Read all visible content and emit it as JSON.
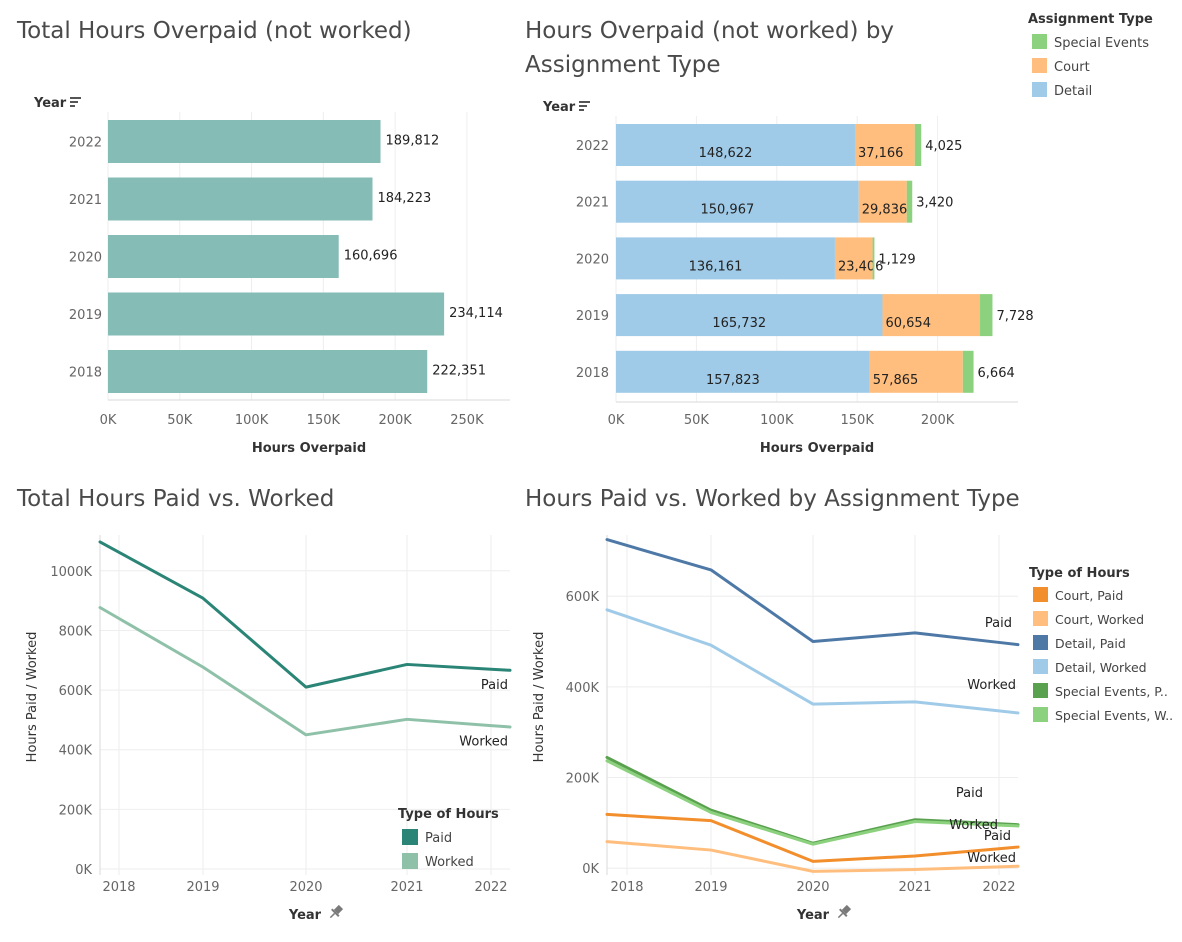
{
  "colors": {
    "teal_bar": "#86bcb6",
    "paid_dark": "#2a8576",
    "worked_light": "#8fc1a9",
    "detail": "#a0cbe8",
    "court": "#ffbe7d",
    "special": "#8cd17d",
    "court_paid": "#f28e2b",
    "court_worked": "#ffbe7d",
    "detail_paid": "#4e79a7",
    "detail_worked": "#a0cbe8",
    "special_paid": "#59a14f",
    "special_worked": "#8cd17d"
  },
  "chart_data": [
    {
      "type": "bar",
      "orientation": "horizontal",
      "title": "Total Hours Overpaid (not worked)",
      "row_header": "Year",
      "row_header_icon": "sort-icon",
      "categories": [
        "2022",
        "2021",
        "2020",
        "2019",
        "2018"
      ],
      "values": [
        189812,
        184223,
        160696,
        234114,
        222351
      ],
      "value_labels": [
        "189,812",
        "184,223",
        "160,696",
        "234,114",
        "222,351"
      ],
      "xlabel": "Hours Overpaid",
      "xlim": [
        0,
        280000
      ],
      "x_ticks": [
        {
          "value": 0,
          "label": "0K"
        },
        {
          "value": 50000,
          "label": "50K"
        },
        {
          "value": 100000,
          "label": "100K"
        },
        {
          "value": 150000,
          "label": "150K"
        },
        {
          "value": 200000,
          "label": "200K"
        },
        {
          "value": 250000,
          "label": "250K"
        }
      ]
    },
    {
      "type": "bar",
      "orientation": "horizontal",
      "stacked": true,
      "title_lines": [
        "Hours Overpaid (not worked) by",
        "Assignment Type"
      ],
      "row_header": "Year",
      "row_header_icon": "sort-icon",
      "categories": [
        "2022",
        "2021",
        "2020",
        "2019",
        "2018"
      ],
      "series": [
        {
          "name": "Detail",
          "values": [
            148622,
            150967,
            136161,
            165732,
            157823
          ],
          "labels": [
            "148,622",
            "150,967",
            "136,161",
            "165,732",
            "157,823"
          ]
        },
        {
          "name": "Court",
          "values": [
            37166,
            29836,
            23406,
            60654,
            57865
          ],
          "labels": [
            "37,166",
            "29,836",
            "23,406",
            "60,654",
            "57,865"
          ]
        },
        {
          "name": "Special Events",
          "values": [
            4025,
            3420,
            1129,
            7728,
            6664
          ],
          "labels": [
            "4,025",
            "3,420",
            "1,129",
            "7,728",
            "6,664"
          ]
        }
      ],
      "legend_title": "Assignment Type",
      "legend": [
        "Special Events",
        "Court",
        "Detail"
      ],
      "legend_placement": "top-right",
      "xlabel": "Hours Overpaid",
      "xlim": [
        0,
        250000
      ],
      "x_ticks": [
        {
          "value": 0,
          "label": "0K"
        },
        {
          "value": 50000,
          "label": "50K"
        },
        {
          "value": 100000,
          "label": "100K"
        },
        {
          "value": 150000,
          "label": "150K"
        },
        {
          "value": 200000,
          "label": "200K"
        }
      ]
    },
    {
      "type": "line",
      "title": "Total Hours Paid vs. Worked",
      "x": [
        "2018",
        "2019",
        "2020",
        "2021",
        "2022"
      ],
      "series": [
        {
          "name": "Paid",
          "values": [
            1062000,
            908000,
            610000,
            686000,
            670000
          ]
        },
        {
          "name": "Worked",
          "values": [
            840000,
            677000,
            450000,
            502000,
            481000
          ]
        }
      ],
      "end_labels": [
        "Paid",
        "Worked"
      ],
      "xlabel": "Year",
      "xlabel_icon": "pin-icon",
      "ylabel": "Hours Paid / Worked",
      "ylim": [
        -20000,
        1120000
      ],
      "y_ticks": [
        {
          "value": 0,
          "label": "0K"
        },
        {
          "value": 200000,
          "label": "200K"
        },
        {
          "value": 400000,
          "label": "400K"
        },
        {
          "value": 600000,
          "label": "600K"
        },
        {
          "value": 800000,
          "label": "800K"
        },
        {
          "value": 1000000,
          "label": "1000K"
        }
      ],
      "legend_title": "Type of Hours",
      "legend": [
        "Paid",
        "Worked"
      ],
      "legend_placement": "bottom-right"
    },
    {
      "type": "line",
      "title": "Hours Paid vs. Worked by Assignment Type",
      "x": [
        "2018",
        "2019",
        "2020",
        "2021",
        "2022"
      ],
      "series": [
        {
          "name": "Court, Paid",
          "values": [
            116000,
            105000,
            15000,
            27000,
            43000
          ]
        },
        {
          "name": "Court, Worked",
          "values": [
            55000,
            40000,
            -7000,
            -3000,
            3000
          ]
        },
        {
          "name": "Detail, Paid",
          "values": [
            712000,
            658000,
            500000,
            519000,
            498000
          ]
        },
        {
          "name": "Detail, Worked",
          "values": [
            555000,
            492000,
            362000,
            367000,
            347000
          ]
        },
        {
          "name": "Special Events, Paid",
          "values": [
            222000,
            128000,
            55000,
            107000,
            98000
          ]
        },
        {
          "name": "Special Events, Worked",
          "values": [
            215000,
            123000,
            53000,
            103000,
            95000
          ]
        }
      ],
      "end_labels": [
        {
          "text": "Paid",
          "series": "Detail, Paid"
        },
        {
          "text": "Worked",
          "series": "Detail, Worked"
        },
        {
          "text": "Paid",
          "series": "Special Events, Paid"
        },
        {
          "text": "Worked",
          "series": "Special Events, Worked"
        },
        {
          "text": "Paid",
          "series": "Court, Paid"
        },
        {
          "text": "Worked",
          "series": "Court, Worked"
        }
      ],
      "xlabel": "Year",
      "xlabel_icon": "pin-icon",
      "ylabel": "Hours Paid / Worked",
      "ylim": [
        -15000,
        735000
      ],
      "y_ticks": [
        {
          "value": 0,
          "label": "0K"
        },
        {
          "value": 200000,
          "label": "200K"
        },
        {
          "value": 400000,
          "label": "400K"
        },
        {
          "value": 600000,
          "label": "600K"
        }
      ],
      "legend_title": "Type of Hours",
      "legend": [
        "Court, Paid",
        "Court, Worked",
        "Detail, Paid",
        "Detail, Worked",
        "Special Events, P..",
        "Special Events, W.."
      ],
      "legend_placement": "right"
    }
  ]
}
